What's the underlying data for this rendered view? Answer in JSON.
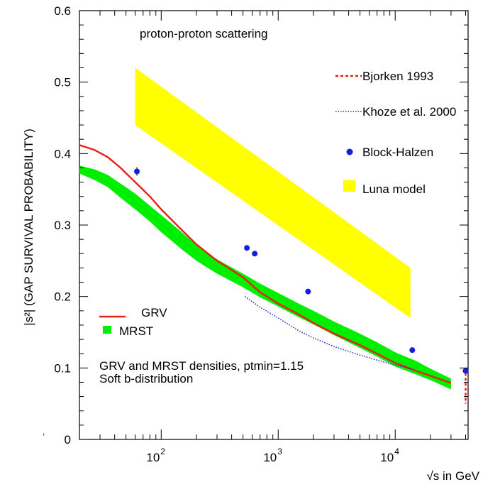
{
  "chart_data": {
    "type": "line",
    "ylabel": "|s²| (GAP SURVIVAL PROBABILITY)",
    "xlabel": "√s in GeV",
    "xscale": "log",
    "xlim": [
      20,
      42000
    ],
    "ylim": [
      0,
      0.6
    ],
    "yticks": [
      "0",
      "0.1",
      "0.2",
      "0.3",
      "0.4",
      "0.5",
      "0.6"
    ],
    "xticks": [
      {
        "base": "10",
        "exp": "2",
        "value": 100
      },
      {
        "base": "10",
        "exp": "3",
        "value": 1000
      },
      {
        "base": "10",
        "exp": "4",
        "value": 10000
      }
    ],
    "annotations": {
      "title": "proton-proton scattering",
      "note_line1": "GRV and MRST densities, ptmin=1.15",
      "note_line2": "Soft b-distribution"
    },
    "series": [
      {
        "name": "GRV",
        "style": "red-solid",
        "color": "#e8201a",
        "x": [
          20,
          27,
          35,
          45,
          60,
          80,
          100,
          150,
          200,
          300,
          500,
          700,
          1000,
          1500,
          2000,
          3000,
          5000,
          7000,
          10000,
          15000,
          20000,
          30000
        ],
        "y": [
          0.412,
          0.405,
          0.395,
          0.38,
          0.36,
          0.34,
          0.322,
          0.293,
          0.273,
          0.25,
          0.227,
          0.206,
          0.19,
          0.175,
          0.163,
          0.148,
          0.132,
          0.12,
          0.107,
          0.096,
          0.089,
          0.079
        ]
      },
      {
        "name": "MRST",
        "style": "green-band",
        "color": "#00ee00",
        "x": [
          20,
          27,
          35,
          45,
          60,
          80,
          100,
          150,
          200,
          300,
          500,
          700,
          1000,
          1500,
          2000,
          3000,
          5000,
          7000,
          10000,
          15000,
          20000,
          30000
        ],
        "y_upper": [
          0.383,
          0.378,
          0.37,
          0.358,
          0.344,
          0.327,
          0.314,
          0.29,
          0.272,
          0.252,
          0.232,
          0.218,
          0.205,
          0.19,
          0.18,
          0.165,
          0.148,
          0.136,
          0.122,
          0.11,
          0.099,
          0.085
        ],
        "y_lower": [
          0.372,
          0.363,
          0.353,
          0.338,
          0.322,
          0.305,
          0.29,
          0.266,
          0.25,
          0.232,
          0.213,
          0.199,
          0.186,
          0.171,
          0.161,
          0.146,
          0.128,
          0.116,
          0.102,
          0.091,
          0.083,
          0.07
        ]
      },
      {
        "name": "Luna model",
        "style": "yellow-band",
        "color": "#ffff00",
        "x": [
          60,
          13500
        ],
        "y_upper": [
          0.52,
          0.24
        ],
        "y_lower": [
          0.44,
          0.17
        ]
      },
      {
        "name": "Khoze et al. 2000",
        "style": "blue-dotted",
        "color": "#2233cc",
        "x": [
          520,
          700,
          1000,
          1500,
          2000,
          3000,
          5000,
          7000,
          10000,
          14000
        ],
        "y": [
          0.2,
          0.185,
          0.17,
          0.152,
          0.142,
          0.13,
          0.118,
          0.111,
          0.104,
          0.099
        ]
      },
      {
        "name": "Block-Halzen",
        "style": "blue-points",
        "color": "#1020dd",
        "x": [
          62,
          540,
          630,
          1800,
          14000,
          40000
        ],
        "y": [
          0.375,
          0.268,
          0.26,
          0.207,
          0.125,
          0.096
        ],
        "yerr": [
          0.006,
          0.003,
          0.003,
          0.002,
          0.002,
          0.002
        ]
      },
      {
        "name": "Bjorken 1993",
        "style": "red-dashed",
        "color": "#e8201a",
        "x": [
          40000,
          40000
        ],
        "y": [
          0.093,
          0.05
        ]
      }
    ],
    "legend": {
      "bjorken": "Bjorken 1993",
      "khoze": "Khoze et al. 2000",
      "block": "Block-Halzen",
      "luna": "Luna model",
      "grv": "GRV",
      "mrst": "MRST"
    },
    "grid": false
  }
}
